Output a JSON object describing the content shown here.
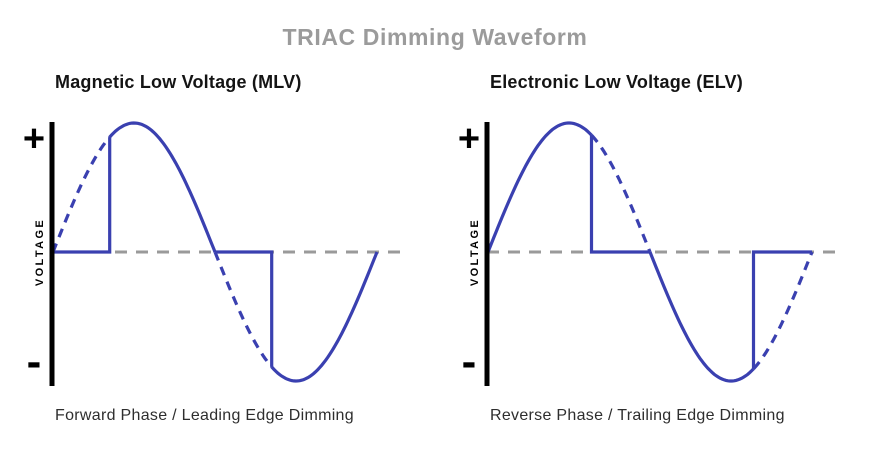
{
  "title": "TRIAC Dimming Waveform",
  "colors": {
    "title": "#9b9b9b",
    "heading": "#141414",
    "caption": "#2e2e2e",
    "wave": "#3a40b0",
    "zero_line": "#9a9a9a",
    "axis": "#000000",
    "background": "#ffffff"
  },
  "panels": [
    {
      "heading": "Magnetic Low Voltage (MLV)",
      "caption": "Forward Phase / Leading Edge Dimming",
      "axis": {
        "plus_label": "+",
        "minus_label": "-",
        "axis_label": "VOLTAGE"
      },
      "waveform": {
        "type": "phase-cut-sine",
        "dimming": "leading-edge",
        "cut_angle_deg": 63,
        "half_cycles_shown": 2,
        "cut_portion_style": "dashed",
        "conducting_portion_style": "solid"
      }
    },
    {
      "heading": "Electronic Low Voltage (ELV)",
      "caption": "Reverse Phase / Trailing Edge Dimming",
      "axis": {
        "plus_label": "+",
        "minus_label": "-",
        "axis_label": "VOLTAGE"
      },
      "waveform": {
        "type": "phase-cut-sine",
        "dimming": "trailing-edge",
        "cut_angle_deg": 115,
        "half_cycles_shown": 2,
        "cut_portion_style": "dashed",
        "conducting_portion_style": "solid"
      }
    }
  ]
}
